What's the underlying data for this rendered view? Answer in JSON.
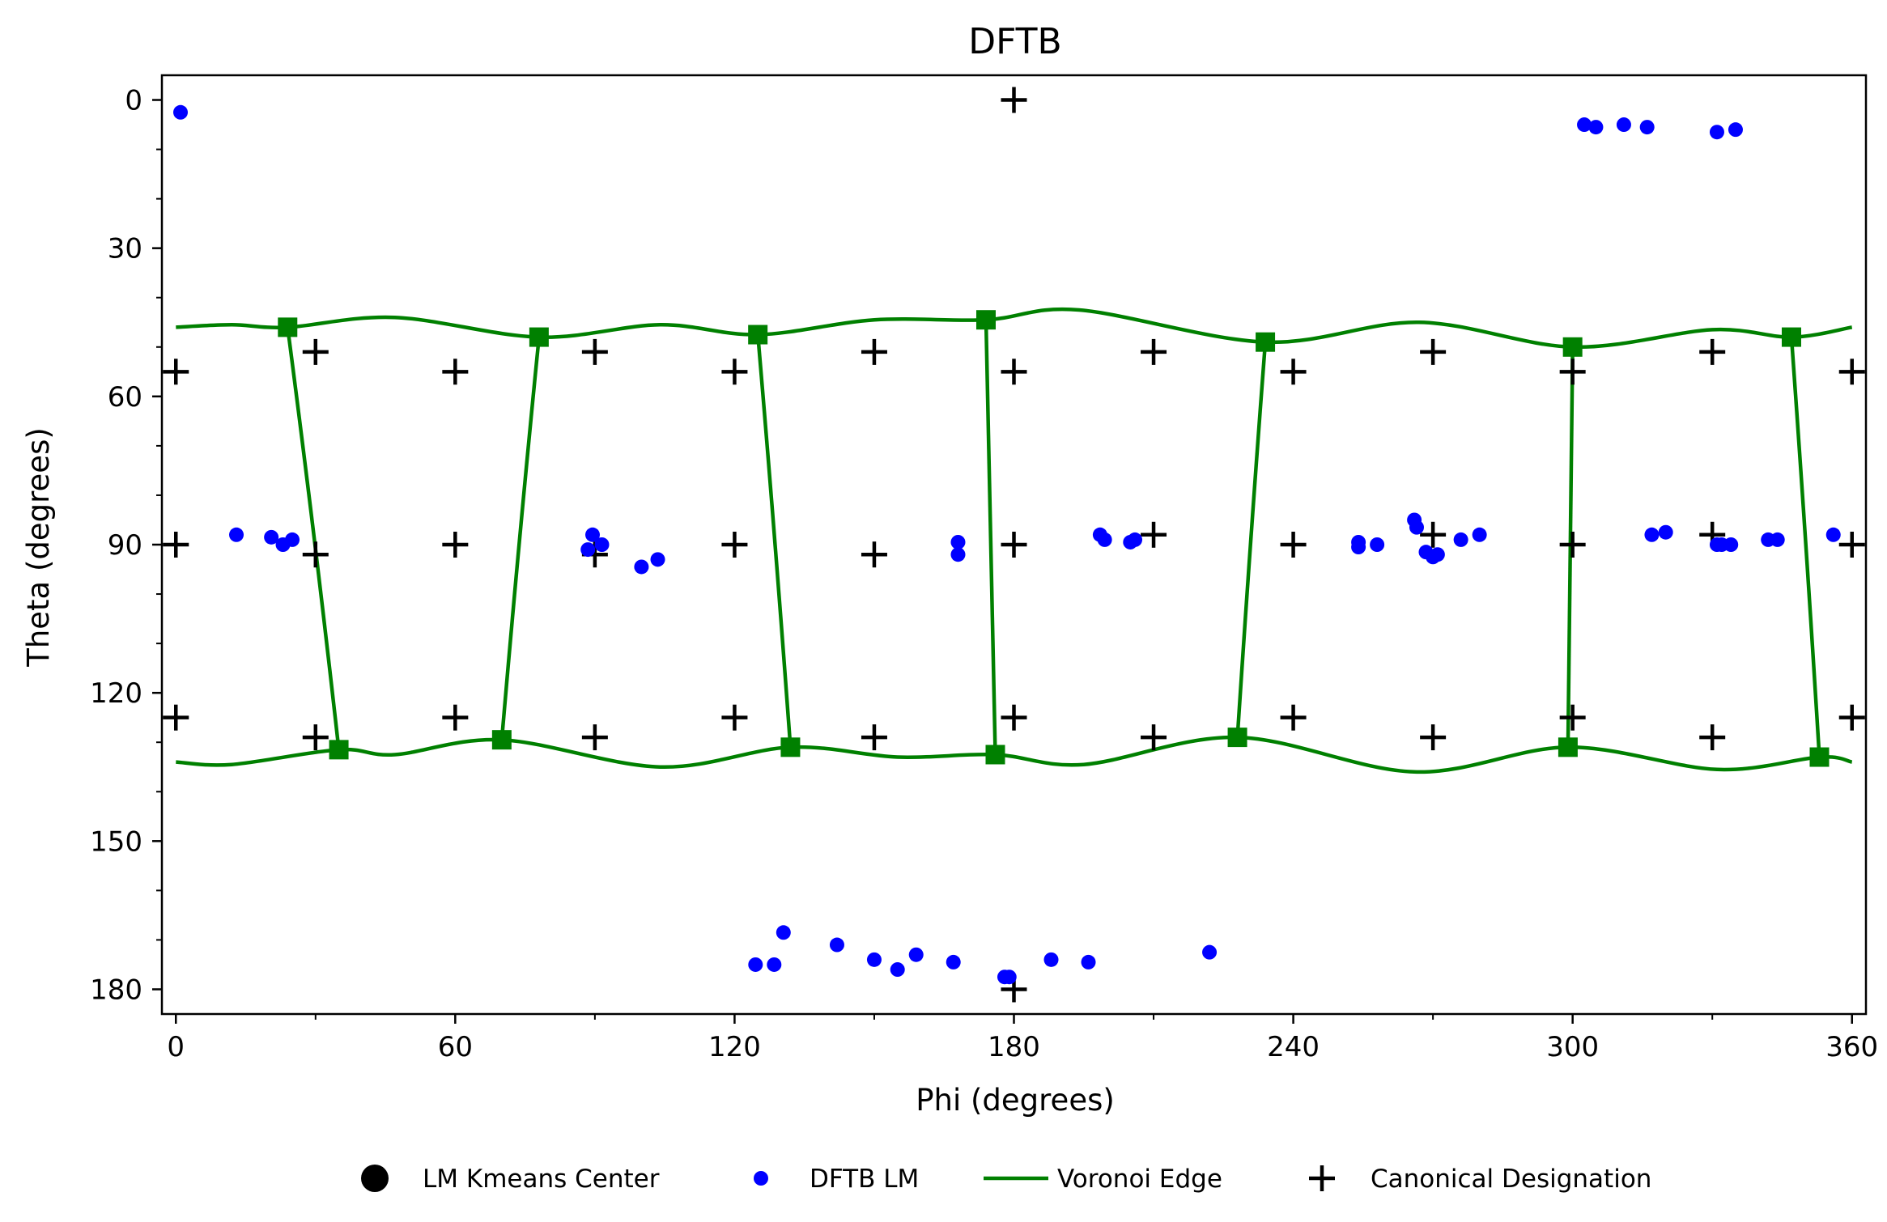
{
  "chart_data": {
    "type": "scatter",
    "title": "DFTB",
    "xlabel": "Phi (degrees)",
    "ylabel": "Theta (degrees)",
    "xlim": [
      -3,
      363
    ],
    "ylim": [
      -5,
      185
    ],
    "y_inverted": true,
    "xticks": [
      0,
      60,
      120,
      180,
      240,
      300,
      360
    ],
    "yticks": [
      0,
      30,
      60,
      90,
      120,
      150,
      180
    ],
    "grid": false,
    "legend_position": "below plot",
    "colors": {
      "lm": "#0000ff",
      "voronoi": "#008000",
      "canonical": "#000000",
      "kmeans": "#000000"
    },
    "series": [
      {
        "name": "LM Kmeans Center",
        "marker": "large-circle",
        "points": []
      },
      {
        "name": "DFTB LM",
        "marker": "circle",
        "points": [
          [
            1,
            2.5
          ],
          [
            302.5,
            5
          ],
          [
            305,
            5.5
          ],
          [
            311,
            5
          ],
          [
            316,
            5.5
          ],
          [
            331,
            6.5
          ],
          [
            335,
            6
          ],
          [
            13,
            88
          ],
          [
            20.5,
            88.5
          ],
          [
            23,
            90
          ],
          [
            25,
            89
          ],
          [
            88.5,
            91
          ],
          [
            89.5,
            88
          ],
          [
            91.5,
            90
          ],
          [
            100,
            94.5
          ],
          [
            103.5,
            93
          ],
          [
            168,
            89.5
          ],
          [
            168,
            92
          ],
          [
            198.5,
            88
          ],
          [
            199.5,
            89
          ],
          [
            205,
            89.5
          ],
          [
            206,
            89
          ],
          [
            254,
            89.5
          ],
          [
            254,
            90.5
          ],
          [
            258,
            90
          ],
          [
            266,
            85
          ],
          [
            266.5,
            86.5
          ],
          [
            268.5,
            91.5
          ],
          [
            270,
            92.5
          ],
          [
            271,
            92
          ],
          [
            276,
            89
          ],
          [
            280,
            88
          ],
          [
            317,
            88
          ],
          [
            320,
            87.5
          ],
          [
            331,
            90
          ],
          [
            332,
            90
          ],
          [
            334,
            90
          ],
          [
            342,
            89
          ],
          [
            344,
            89
          ],
          [
            356,
            88
          ],
          [
            130.5,
            168.5
          ],
          [
            124.5,
            175
          ],
          [
            128.5,
            175
          ],
          [
            142,
            171
          ],
          [
            150,
            174
          ],
          [
            155,
            176
          ],
          [
            159,
            173
          ],
          [
            167,
            174.5
          ],
          [
            178,
            177.5
          ],
          [
            179,
            177.5
          ],
          [
            188,
            174
          ],
          [
            196,
            174.5
          ],
          [
            222,
            172.5
          ]
        ]
      },
      {
        "name": "Canonical Designation",
        "marker": "plus",
        "points": [
          [
            180,
            0
          ],
          [
            0,
            55
          ],
          [
            30,
            51
          ],
          [
            60,
            55
          ],
          [
            90,
            51
          ],
          [
            120,
            55
          ],
          [
            150,
            51
          ],
          [
            180,
            55
          ],
          [
            210,
            51
          ],
          [
            240,
            55
          ],
          [
            270,
            51
          ],
          [
            300,
            55
          ],
          [
            330,
            51
          ],
          [
            360,
            55
          ],
          [
            0,
            90
          ],
          [
            30,
            92
          ],
          [
            60,
            90
          ],
          [
            90,
            92
          ],
          [
            120,
            90
          ],
          [
            150,
            92
          ],
          [
            180,
            90
          ],
          [
            210,
            88
          ],
          [
            240,
            90
          ],
          [
            270,
            88
          ],
          [
            300,
            90
          ],
          [
            330,
            88
          ],
          [
            360,
            90
          ],
          [
            0,
            125
          ],
          [
            30,
            129
          ],
          [
            60,
            125
          ],
          [
            90,
            129
          ],
          [
            120,
            125
          ],
          [
            150,
            129
          ],
          [
            180,
            125
          ],
          [
            210,
            129
          ],
          [
            240,
            125
          ],
          [
            270,
            129
          ],
          [
            300,
            125
          ],
          [
            330,
            129
          ],
          [
            360,
            125
          ],
          [
            180,
            180
          ]
        ]
      }
    ],
    "voronoi": {
      "name": "Voronoi Edge",
      "vertices": [
        [
          24,
          46
        ],
        [
          78,
          48
        ],
        [
          125,
          47.5
        ],
        [
          174,
          44.5
        ],
        [
          234,
          49
        ],
        [
          300,
          50
        ],
        [
          347,
          48
        ],
        [
          35,
          131.5
        ],
        [
          70,
          129.5
        ],
        [
          132,
          131
        ],
        [
          176,
          132.5
        ],
        [
          228,
          129
        ],
        [
          299,
          131
        ],
        [
          353,
          133
        ]
      ],
      "upper_curve": [
        [
          0,
          46
        ],
        [
          12,
          45.5
        ],
        [
          24,
          46
        ],
        [
          47,
          44
        ],
        [
          78,
          48
        ],
        [
          104,
          45.5
        ],
        [
          125,
          47.5
        ],
        [
          150,
          44.5
        ],
        [
          174,
          44.5
        ],
        [
          194,
          42.5
        ],
        [
          234,
          49
        ],
        [
          267,
          45
        ],
        [
          300,
          50
        ],
        [
          330,
          46.5
        ],
        [
          347,
          48
        ],
        [
          360,
          46
        ]
      ],
      "lower_curve": [
        [
          0,
          134
        ],
        [
          12,
          134.5
        ],
        [
          35,
          131.5
        ],
        [
          47,
          132.5
        ],
        [
          70,
          129.5
        ],
        [
          104,
          135
        ],
        [
          132,
          131
        ],
        [
          155,
          133
        ],
        [
          176,
          132.5
        ],
        [
          195,
          134.5
        ],
        [
          228,
          129
        ],
        [
          266,
          136
        ],
        [
          299,
          131
        ],
        [
          331,
          135.5
        ],
        [
          353,
          133
        ],
        [
          360,
          134
        ]
      ],
      "vertical_edges": [
        [
          [
            24,
            46
          ],
          [
            35,
            131.5
          ]
        ],
        [
          [
            78,
            48
          ],
          [
            70,
            129.5
          ]
        ],
        [
          [
            125,
            47.5
          ],
          [
            132,
            131
          ]
        ],
        [
          [
            174,
            44.5
          ],
          [
            176,
            132.5
          ]
        ],
        [
          [
            234,
            49
          ],
          [
            228,
            129
          ]
        ],
        [
          [
            300,
            50
          ],
          [
            299,
            131
          ]
        ],
        [
          [
            347,
            48
          ],
          [
            353,
            133
          ]
        ]
      ]
    },
    "legend": [
      "LM Kmeans Center",
      "DFTB LM",
      "Voronoi Edge",
      "Canonical Designation"
    ]
  }
}
